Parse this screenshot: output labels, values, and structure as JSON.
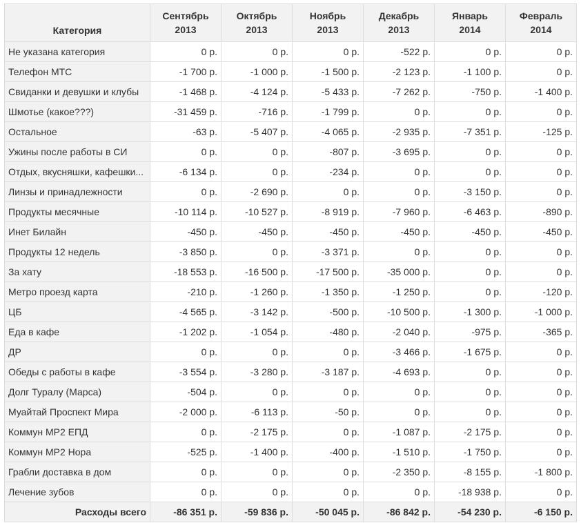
{
  "table": {
    "category_header": "Категория",
    "months": [
      {
        "name": "Сентябрь",
        "year": "2013"
      },
      {
        "name": "Октябрь",
        "year": "2013"
      },
      {
        "name": "Ноябрь",
        "year": "2013"
      },
      {
        "name": "Декабрь",
        "year": "2013"
      },
      {
        "name": "Январь",
        "year": "2014"
      },
      {
        "name": "Февраль",
        "year": "2014"
      }
    ],
    "rows": [
      {
        "category": "Не указана категория",
        "values": [
          "0 р.",
          "0 р.",
          "0 р.",
          "-522 р.",
          "0 р.",
          "0 р."
        ]
      },
      {
        "category": "Телефон МТС",
        "values": [
          "-1 700 р.",
          "-1 000 р.",
          "-1 500 р.",
          "-2 123 р.",
          "-1 100 р.",
          "0 р."
        ]
      },
      {
        "category": "Свиданки и девушки и клубы",
        "values": [
          "-1 468 р.",
          "-4 124 р.",
          "-5 433 р.",
          "-7 262 р.",
          "-750 р.",
          "-1 400 р."
        ]
      },
      {
        "category": "Шмотье (какое???)",
        "values": [
          "-31 459 р.",
          "-716 р.",
          "-1 799 р.",
          "0 р.",
          "0 р.",
          "0 р."
        ]
      },
      {
        "category": "Остальное",
        "values": [
          "-63 р.",
          "-5 407 р.",
          "-4 065 р.",
          "-2 935 р.",
          "-7 351 р.",
          "-125 р."
        ]
      },
      {
        "category": "Ужины после работы в СИ",
        "values": [
          "0 р.",
          "0 р.",
          "-807 р.",
          "-3 695 р.",
          "0 р.",
          "0 р."
        ]
      },
      {
        "category": "Отдых, вкусняшки, кафешки...",
        "values": [
          "-6 134 р.",
          "0 р.",
          "-234 р.",
          "0 р.",
          "0 р.",
          "0 р."
        ]
      },
      {
        "category": "Линзы и принадлежности",
        "values": [
          "0 р.",
          "-2 690 р.",
          "0 р.",
          "0 р.",
          "-3 150 р.",
          "0 р."
        ]
      },
      {
        "category": "Продукты месячные",
        "values": [
          "-10 114 р.",
          "-10 527 р.",
          "-8 919 р.",
          "-7 960 р.",
          "-6 463 р.",
          "-890 р."
        ]
      },
      {
        "category": "Инет Билайн",
        "values": [
          "-450 р.",
          "-450 р.",
          "-450 р.",
          "-450 р.",
          "-450 р.",
          "-450 р."
        ]
      },
      {
        "category": "Продукты 12 недель",
        "values": [
          "-3 850 р.",
          "0 р.",
          "-3 371 р.",
          "0 р.",
          "0 р.",
          "0 р."
        ]
      },
      {
        "category": "За хату",
        "values": [
          "-18 553 р.",
          "-16 500 р.",
          "-17 500 р.",
          "-35 000 р.",
          "0 р.",
          "0 р."
        ]
      },
      {
        "category": "Метро проезд карта",
        "values": [
          "-210 р.",
          "-1 260 р.",
          "-1 350 р.",
          "-1 250 р.",
          "0 р.",
          "-120 р."
        ]
      },
      {
        "category": "ЦБ",
        "values": [
          "-4 565 р.",
          "-3 142 р.",
          "-500 р.",
          "-10 500 р.",
          "-1 300 р.",
          "-1 000 р."
        ]
      },
      {
        "category": "Еда в кафе",
        "values": [
          "-1 202 р.",
          "-1 054 р.",
          "-480 р.",
          "-2 040 р.",
          "-975 р.",
          "-365 р."
        ]
      },
      {
        "category": "ДР",
        "values": [
          "0 р.",
          "0 р.",
          "0 р.",
          "-3 466 р.",
          "-1 675 р.",
          "0 р."
        ]
      },
      {
        "category": "Обеды с работы в кафе",
        "values": [
          "-3 554 р.",
          "-3 280 р.",
          "-3 187 р.",
          "-4 693 р.",
          "0 р.",
          "0 р."
        ]
      },
      {
        "category": "Долг Туралу (Марса)",
        "values": [
          "-504 р.",
          "0 р.",
          "0 р.",
          "0 р.",
          "0 р.",
          "0 р."
        ]
      },
      {
        "category": "Муайтай Проспект Мира",
        "values": [
          "-2 000 р.",
          "-6 113 р.",
          "-50 р.",
          "0 р.",
          "0 р.",
          "0 р."
        ]
      },
      {
        "category": "Коммун МР2 ЕПД",
        "values": [
          "0 р.",
          "-2 175 р.",
          "0 р.",
          "-1 087 р.",
          "-2 175 р.",
          "0 р."
        ]
      },
      {
        "category": "Коммун МР2 Нора",
        "values": [
          "-525 р.",
          "-1 400 р.",
          "-400 р.",
          "-1 510 р.",
          "-1 750 р.",
          "0 р."
        ]
      },
      {
        "category": "Грабли доставка в дом",
        "values": [
          "0 р.",
          "0 р.",
          "0 р.",
          "-2 350 р.",
          "-8 155 р.",
          "-1 800 р."
        ]
      },
      {
        "category": "Лечение зубов",
        "values": [
          "0 р.",
          "0 р.",
          "0 р.",
          "0 р.",
          "-18 938 р.",
          "0 р."
        ]
      }
    ],
    "total": {
      "label": "Расходы всего",
      "values": [
        "-86 351 р.",
        "-59 836 р.",
        "-50 045 р.",
        "-86 842 р.",
        "-54 230 р.",
        "-6 150 р."
      ]
    }
  }
}
